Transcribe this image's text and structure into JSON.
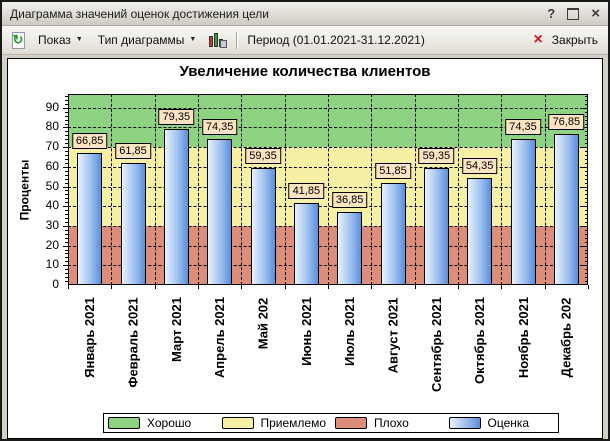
{
  "window": {
    "title": "Диаграмма значений оценок достижения цели",
    "controls": {
      "help_glyph": "?",
      "close_glyph": "×"
    }
  },
  "toolbar": {
    "refresh_glyph": "↻",
    "show": "Показ",
    "chart_type": "Тип диаграммы",
    "dropdown_glyph": "▼",
    "period": "Период (01.01.2021-31.12.2021)",
    "close_glyph": "×",
    "close": "Закрыть"
  },
  "chart_data": {
    "type": "bar",
    "title": "Увеличение количества клиентов",
    "ylabel": "Проценты",
    "categories": [
      "Январь 2021",
      "Февраль 2021",
      "Март 2021",
      "Апрель 2021",
      "Май 202",
      "Июнь 2021",
      "Июль 2021",
      "Август 2021",
      "Сентябрь 2021",
      "Октябрь 2021",
      "Ноябрь 2021",
      "Декабрь 202"
    ],
    "values": [
      66.85,
      61.85,
      79.35,
      74.35,
      59.35,
      41.85,
      36.85,
      51.85,
      59.35,
      54.35,
      74.35,
      76.85
    ],
    "value_labels": [
      "66,85",
      "61,85",
      "79,35",
      "74,35",
      "59,35",
      "41,85",
      "36,85",
      "51,85",
      "59,35",
      "54,35",
      "74,35",
      "76,85"
    ],
    "ylim": [
      0,
      97
    ],
    "yticks": [
      0,
      10,
      20,
      30,
      40,
      50,
      60,
      70,
      80,
      90
    ],
    "grid": true,
    "zones": [
      {
        "label": "Плохо",
        "from": 0,
        "to": 30,
        "color": "#DD8E7B"
      },
      {
        "label": "Приемлемо",
        "from": 30,
        "to": 70,
        "color": "#F5F0A3"
      },
      {
        "label": "Хорошо",
        "from": 70,
        "to": 97,
        "color": "#8ED381"
      }
    ],
    "bar_gradient": [
      "#E9F3FD",
      "#9EC1F0",
      "#5C8EDC"
    ],
    "legend_position": "bottom",
    "legend": [
      {
        "label": "Хорошо",
        "color": "#8ED381"
      },
      {
        "label": "Приемлемо",
        "color": "#F5F0A3"
      },
      {
        "label": "Плохо",
        "color": "#DD8E7B"
      },
      {
        "label": "Оценка",
        "gradient_from": "#E9F3FD",
        "gradient_to": "#5C8EDC"
      }
    ]
  }
}
